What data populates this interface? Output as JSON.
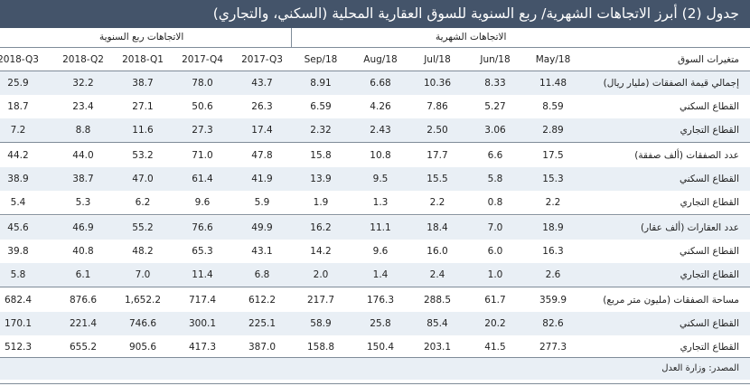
{
  "title": "جدول (2) أبرز الاتجاهات الشهرية/ ربع السنوية للسوق العقارية المحلية (السكني، والتجاري)",
  "groups": {
    "monthly": "الاتجاهات الشهرية",
    "quarterly": "الاتجاهات ربع السنوية"
  },
  "header": {
    "label": "متغيرات السوق",
    "cols": [
      "2018-Q3",
      "2018-Q2",
      "2018-Q1",
      "2017-Q4",
      "2017-Q3",
      "Sep/18",
      "Aug/18",
      "Jul/18",
      "Jun/18",
      "May/18"
    ]
  },
  "rows": [
    {
      "label": "إجمالي قيمة الصفقات (مليار ريال)",
      "values": [
        "25.9",
        "32.2",
        "38.7",
        "78.0",
        "43.7",
        "8.91",
        "6.68",
        "10.36",
        "8.33",
        "11.48"
      ]
    },
    {
      "label": "القطاع السكني",
      "values": [
        "18.7",
        "23.4",
        "27.1",
        "50.6",
        "26.3",
        "6.59",
        "4.26",
        "7.86",
        "5.27",
        "8.59"
      ]
    },
    {
      "label": "القطاع التجاري",
      "values": [
        "7.2",
        "8.8",
        "11.6",
        "27.3",
        "17.4",
        "2.32",
        "2.43",
        "2.50",
        "3.06",
        "2.89"
      ]
    },
    {
      "label": "عدد الصفقات (ألف صفقة)",
      "values": [
        "44.2",
        "44.0",
        "53.2",
        "71.0",
        "47.8",
        "15.8",
        "10.8",
        "17.7",
        "6.6",
        "17.5"
      ]
    },
    {
      "label": "القطاع السكني",
      "values": [
        "38.9",
        "38.7",
        "47.0",
        "61.4",
        "41.9",
        "13.9",
        "9.5",
        "15.5",
        "5.8",
        "15.3"
      ]
    },
    {
      "label": "القطاع التجاري",
      "values": [
        "5.4",
        "5.3",
        "6.2",
        "9.6",
        "5.9",
        "1.9",
        "1.3",
        "2.2",
        "0.8",
        "2.2"
      ]
    },
    {
      "label": "عدد العقارات (ألف عقار)",
      "values": [
        "45.6",
        "46.9",
        "55.2",
        "76.6",
        "49.9",
        "16.2",
        "11.1",
        "18.4",
        "7.0",
        "18.9"
      ]
    },
    {
      "label": "القطاع السكني",
      "values": [
        "39.8",
        "40.8",
        "48.2",
        "65.3",
        "43.1",
        "14.2",
        "9.6",
        "16.0",
        "6.0",
        "16.3"
      ]
    },
    {
      "label": "القطاع التجاري",
      "values": [
        "5.8",
        "6.1",
        "7.0",
        "11.4",
        "6.8",
        "2.0",
        "1.4",
        "2.4",
        "1.0",
        "2.6"
      ]
    },
    {
      "label": "مساحة الصفقات (مليون متر مربع)",
      "values": [
        "682.4",
        "876.6",
        "1,652.2",
        "717.4",
        "612.2",
        "217.7",
        "176.3",
        "288.5",
        "61.7",
        "359.9"
      ]
    },
    {
      "label": "القطاع السكني",
      "values": [
        "170.1",
        "221.4",
        "746.6",
        "300.1",
        "225.1",
        "58.9",
        "25.8",
        "85.4",
        "20.2",
        "82.6"
      ]
    },
    {
      "label": "القطاع التجاري",
      "values": [
        "512.3",
        "655.2",
        "905.6",
        "417.3",
        "387.0",
        "158.8",
        "150.4",
        "203.1",
        "41.5",
        "277.3"
      ]
    }
  ],
  "source": "المصدر: وزارة العدل"
}
